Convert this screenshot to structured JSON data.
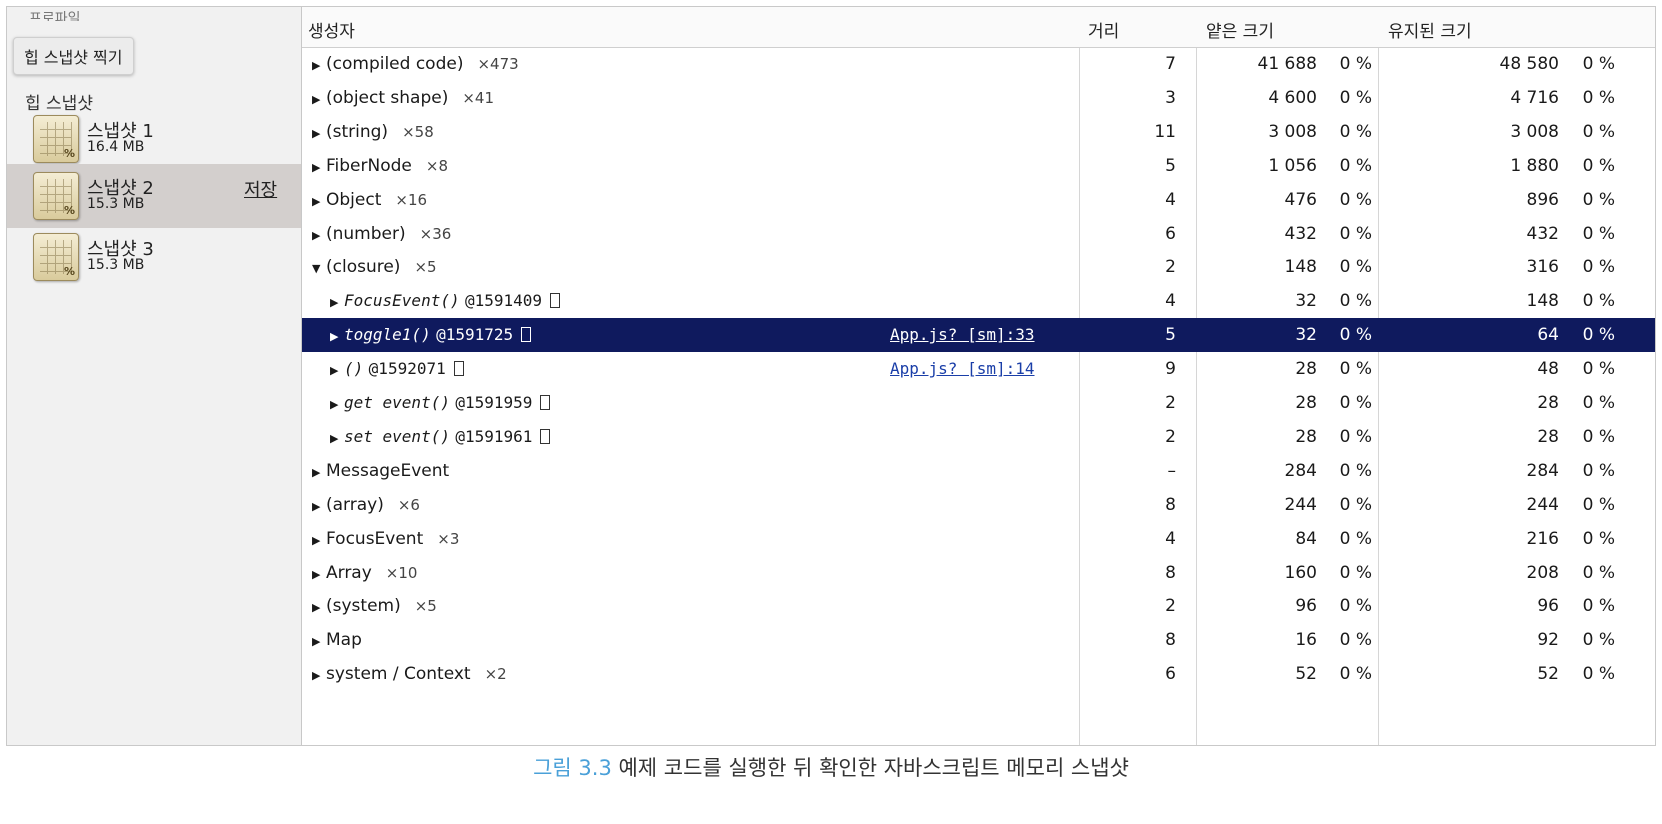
{
  "sidebar": {
    "header_cut": "프로파일",
    "tooltip": "힙 스냅샷 찍기",
    "section_title": "힙 스냅샷",
    "save_label": "저장",
    "snapshots": [
      {
        "name": "스냅샷 1",
        "size": "16.4 MB",
        "selected": false
      },
      {
        "name": "스냅샷 2",
        "size": "15.3 MB",
        "selected": true
      },
      {
        "name": "스냅샷 3",
        "size": "15.3 MB",
        "selected": false
      }
    ]
  },
  "table": {
    "headers": {
      "constructor": "생성자",
      "distance": "거리",
      "shallow_size": "얕은 크기",
      "retained_size": "유지된 크기"
    },
    "rows": [
      {
        "indent": 0,
        "expander": "▶",
        "name": "(compiled code)",
        "count": "×473",
        "distance": "7",
        "shallow": "41 688",
        "shallow_pct": "0 %",
        "retained": "48 580",
        "retained_pct": "0 %"
      },
      {
        "indent": 0,
        "expander": "▶",
        "name": "(object shape)",
        "count": "×41",
        "distance": "3",
        "shallow": "4 600",
        "shallow_pct": "0 %",
        "retained": "4 716",
        "retained_pct": "0 %"
      },
      {
        "indent": 0,
        "expander": "▶",
        "name": "(string)",
        "count": "×58",
        "distance": "11",
        "shallow": "3 008",
        "shallow_pct": "0 %",
        "retained": "3 008",
        "retained_pct": "0 %"
      },
      {
        "indent": 0,
        "expander": "▶",
        "name": "FiberNode",
        "count": "×8",
        "distance": "5",
        "shallow": "1 056",
        "shallow_pct": "0 %",
        "retained": "1 880",
        "retained_pct": "0 %"
      },
      {
        "indent": 0,
        "expander": "▶",
        "name": "Object",
        "count": "×16",
        "distance": "4",
        "shallow": "476",
        "shallow_pct": "0 %",
        "retained": "896",
        "retained_pct": "0 %"
      },
      {
        "indent": 0,
        "expander": "▶",
        "name": "(number)",
        "count": "×36",
        "distance": "6",
        "shallow": "432",
        "shallow_pct": "0 %",
        "retained": "432",
        "retained_pct": "0 %"
      },
      {
        "indent": 0,
        "expander": "▼",
        "name": "(closure)",
        "count": "×5",
        "distance": "2",
        "shallow": "148",
        "shallow_pct": "0 %",
        "retained": "316",
        "retained_pct": "0 %"
      },
      {
        "indent": 1,
        "expander": "▶",
        "fn": "FocusEvent()",
        "id": "@1591409",
        "distance": "4",
        "shallow": "32",
        "shallow_pct": "0 %",
        "retained": "148",
        "retained_pct": "0 %"
      },
      {
        "indent": 1,
        "expander": "▶",
        "fn": "toggle1()",
        "id": "@1591725",
        "src": "App.js? [sm]:33",
        "selected": true,
        "distance": "5",
        "shallow": "32",
        "shallow_pct": "0 %",
        "retained": "64",
        "retained_pct": "0 %"
      },
      {
        "indent": 1,
        "expander": "▶",
        "fn": "()",
        "id": "@1592071",
        "src": "App.js? [sm]:14",
        "distance": "9",
        "shallow": "28",
        "shallow_pct": "0 %",
        "retained": "48",
        "retained_pct": "0 %"
      },
      {
        "indent": 1,
        "expander": "▶",
        "fn": "get event()",
        "id": "@1591959",
        "distance": "2",
        "shallow": "28",
        "shallow_pct": "0 %",
        "retained": "28",
        "retained_pct": "0 %"
      },
      {
        "indent": 1,
        "expander": "▶",
        "fn": "set event()",
        "id": "@1591961",
        "distance": "2",
        "shallow": "28",
        "shallow_pct": "0 %",
        "retained": "28",
        "retained_pct": "0 %"
      },
      {
        "indent": 0,
        "expander": "▶",
        "name": "MessageEvent",
        "distance": "–",
        "shallow": "284",
        "shallow_pct": "0 %",
        "retained": "284",
        "retained_pct": "0 %"
      },
      {
        "indent": 0,
        "expander": "▶",
        "name": "(array)",
        "count": "×6",
        "distance": "8",
        "shallow": "244",
        "shallow_pct": "0 %",
        "retained": "244",
        "retained_pct": "0 %"
      },
      {
        "indent": 0,
        "expander": "▶",
        "name": "FocusEvent",
        "count": "×3",
        "distance": "4",
        "shallow": "84",
        "shallow_pct": "0 %",
        "retained": "216",
        "retained_pct": "0 %"
      },
      {
        "indent": 0,
        "expander": "▶",
        "name": "Array",
        "count": "×10",
        "distance": "8",
        "shallow": "160",
        "shallow_pct": "0 %",
        "retained": "208",
        "retained_pct": "0 %"
      },
      {
        "indent": 0,
        "expander": "▶",
        "name": "(system)",
        "count": "×5",
        "distance": "2",
        "shallow": "96",
        "shallow_pct": "0 %",
        "retained": "96",
        "retained_pct": "0 %"
      },
      {
        "indent": 0,
        "expander": "▶",
        "name": "Map",
        "distance": "8",
        "shallow": "16",
        "shallow_pct": "0 %",
        "retained": "92",
        "retained_pct": "0 %"
      },
      {
        "indent": 0,
        "expander": "▶",
        "name": "system / Context",
        "count": "×2",
        "distance": "6",
        "shallow": "52",
        "shallow_pct": "0 %",
        "retained": "52",
        "retained_pct": "0 %"
      }
    ]
  },
  "caption": {
    "figure": "그림 3.3",
    "text": " 예제 코드를 실행한 뒤 확인한 자바스크립트 메모리 스냅샷"
  },
  "colors": {
    "selected_row": "#0f1a5e",
    "selected_snapshot": "#d3cfcd",
    "link": "#1a3ea8",
    "caption_figure": "#4aa0d8"
  }
}
